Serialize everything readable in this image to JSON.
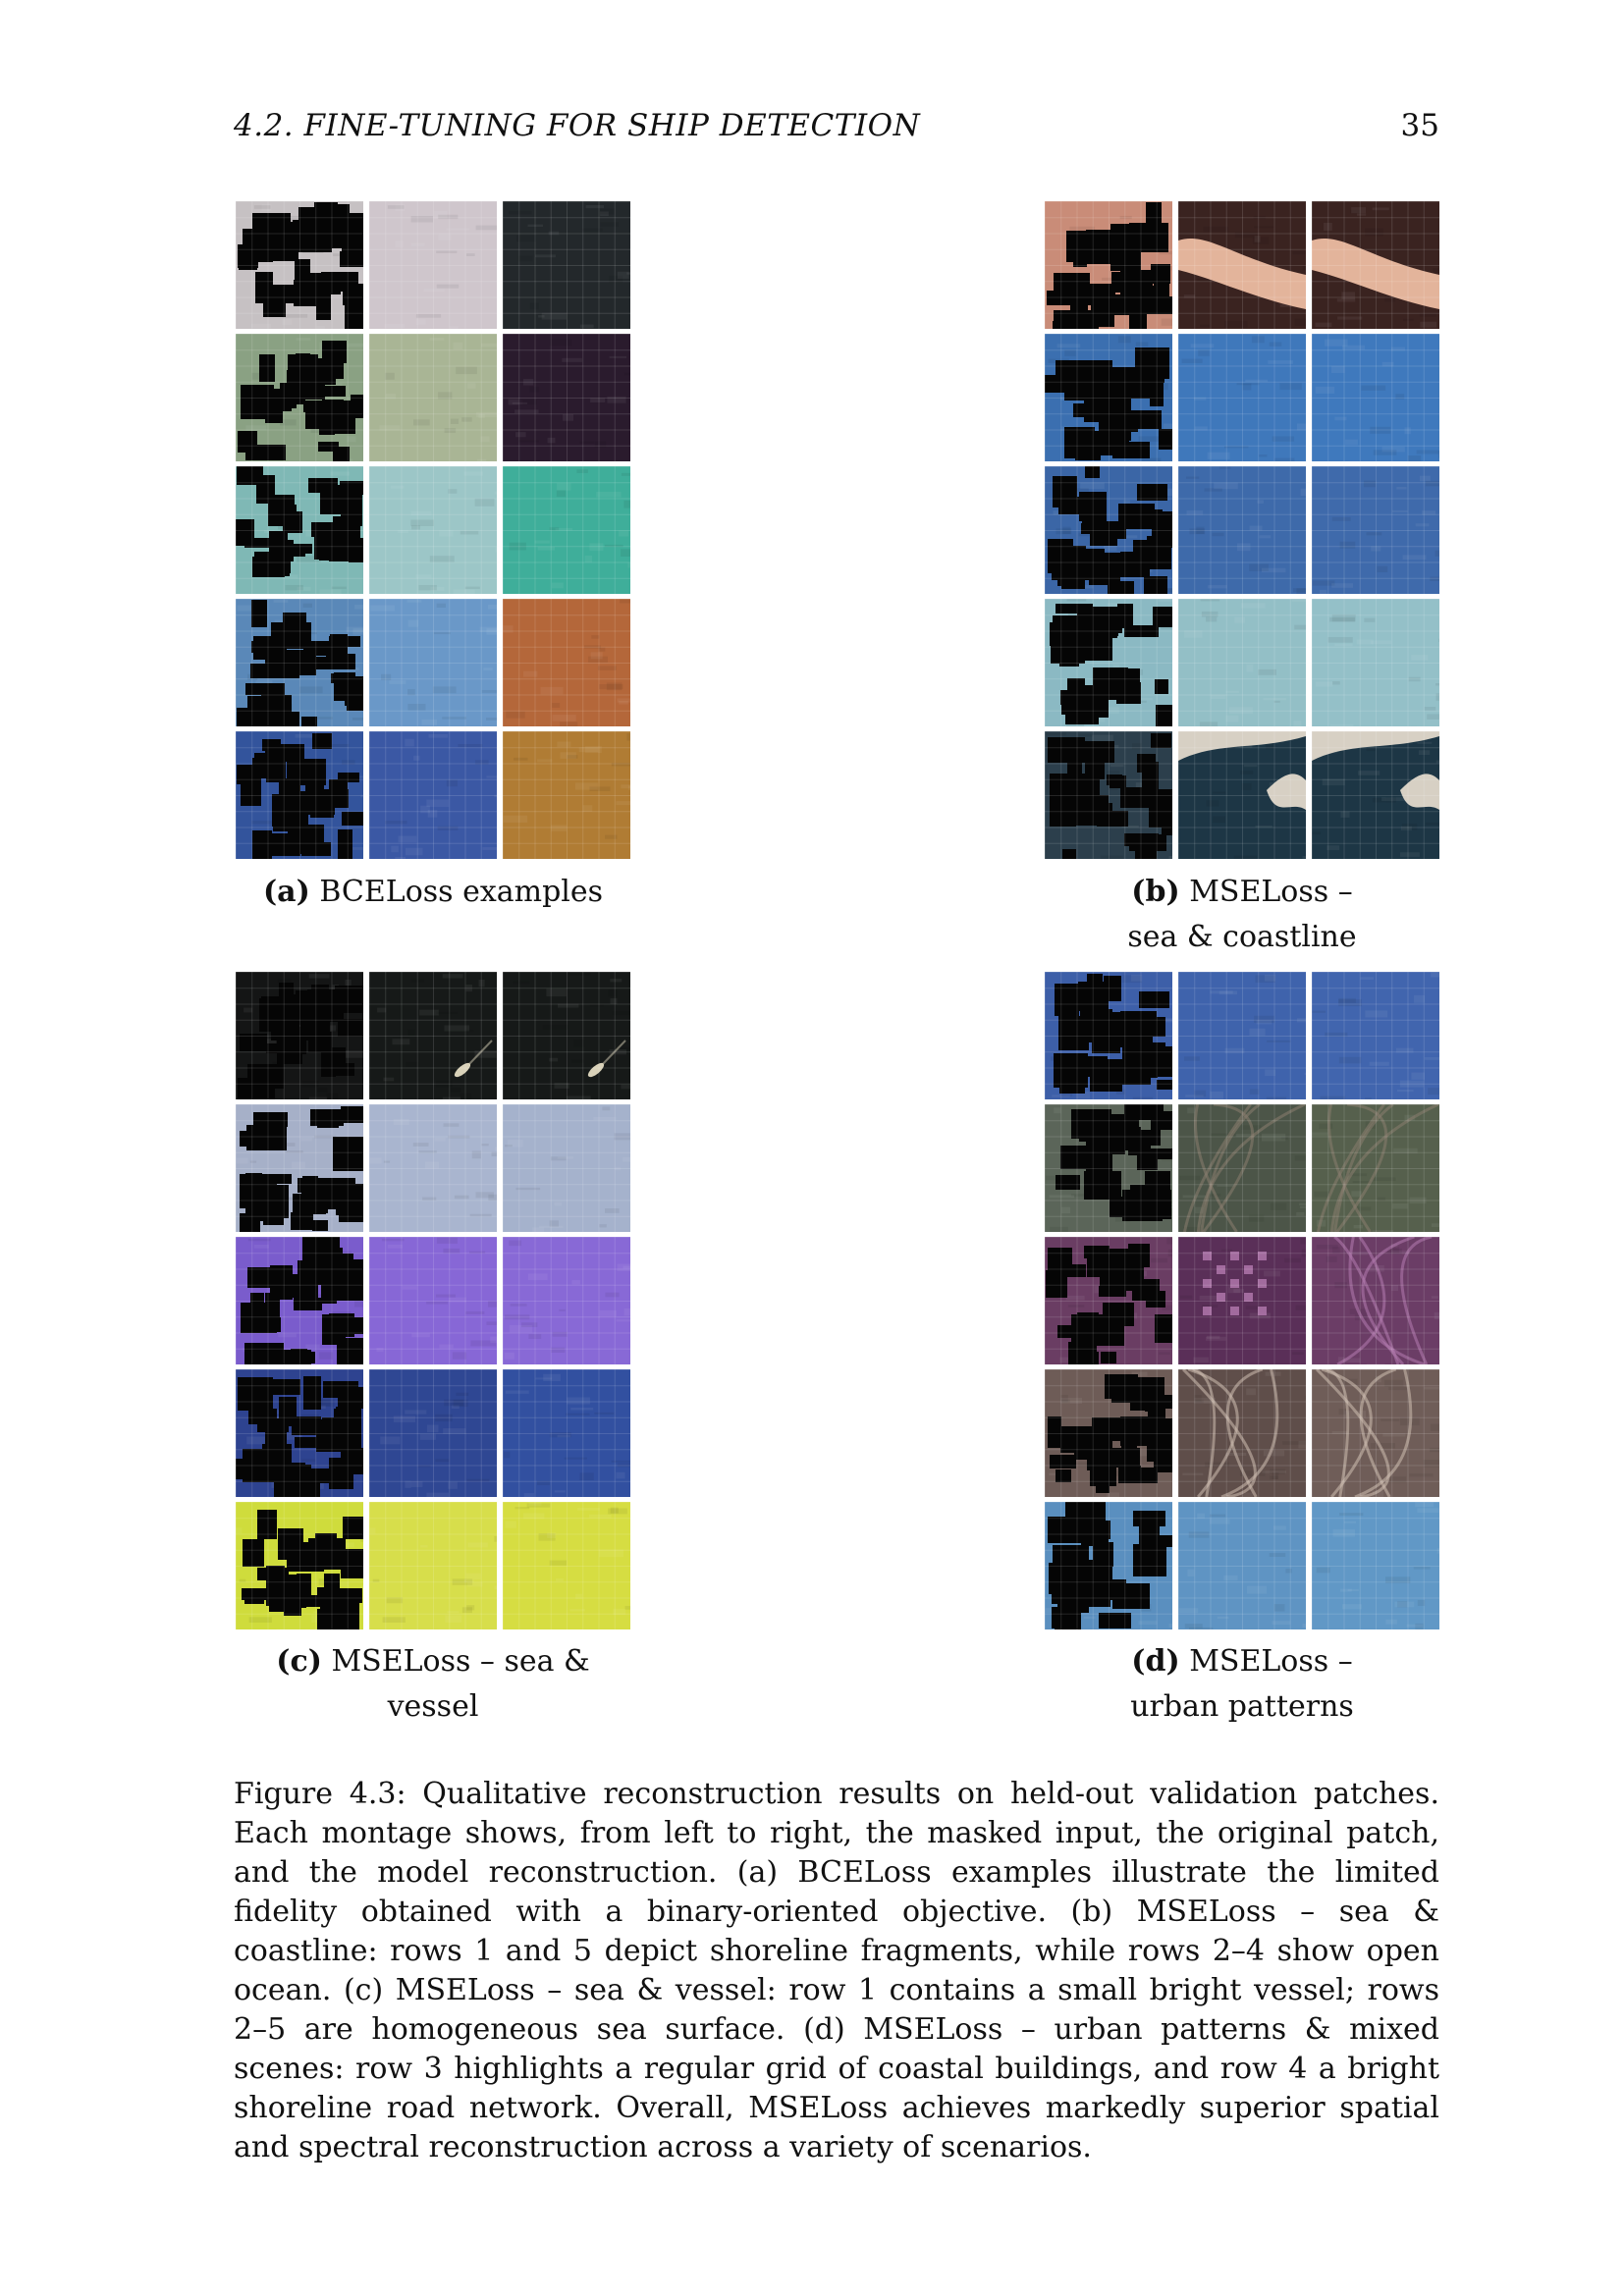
{
  "header": {
    "section": "4.2.   FINE-TUNING FOR SHIP DETECTION",
    "page_number": "35"
  },
  "panels": [
    {
      "label": "(a)",
      "title": "BCELoss examples",
      "rows": [
        {
          "mask": "#c6c1c3",
          "orig": "#cfc6cc",
          "recon": "#23282b"
        },
        {
          "mask": "#8aa183",
          "orig": "#a9b595",
          "recon": "#2a1b2d"
        },
        {
          "mask": "#7fb8b5",
          "orig": "#9cc6c7",
          "recon": "#3fae9a"
        },
        {
          "mask": "#5a88b8",
          "orig": "#6a98c8",
          "recon": "#b4673a"
        },
        {
          "mask": "#33549c",
          "orig": "#3b58a4",
          "recon": "#b07c34"
        }
      ]
    },
    {
      "label": "(b)",
      "title": "MSELoss – sea & coastline",
      "rows": [
        {
          "mask": "#c98c78",
          "orig": "#3a2320",
          "recon": "#3a2320",
          "accent": "#e3b49b"
        },
        {
          "mask": "#3b6fb0",
          "orig": "#3f78bb",
          "recon": "#3f79bd"
        },
        {
          "mask": "#3b66a6",
          "orig": "#3e6aaa",
          "recon": "#3f6aab"
        },
        {
          "mask": "#8bb9c3",
          "orig": "#93bfc6",
          "recon": "#94c0c8"
        },
        {
          "mask": "#2c3f4c",
          "orig": "#1d3645",
          "recon": "#1d3645",
          "accent": "#d7d0c4"
        }
      ]
    },
    {
      "label": "(c)",
      "title": "MSELoss – sea & vessel",
      "rows": [
        {
          "mask": "#141515",
          "orig": "#161918",
          "recon": "#161918",
          "accent": "#d9d2b9"
        },
        {
          "mask": "#a6b0c8",
          "orig": "#a9b5cf",
          "recon": "#a5b2cc"
        },
        {
          "mask": "#7a5ccc",
          "orig": "#8767d6",
          "recon": "#8869d6"
        },
        {
          "mask": "#2e4390",
          "orig": "#2f4793",
          "recon": "#3250a0"
        },
        {
          "mask": "#cfdc3c",
          "orig": "#d7de4b",
          "recon": "#d6dd42"
        }
      ]
    },
    {
      "label": "(d)",
      "title": "MSELoss – urban patterns",
      "rows": [
        {
          "mask": "#3d5fa8",
          "orig": "#3f63ac",
          "recon": "#4165ae"
        },
        {
          "mask": "#5b6559",
          "orig": "#4c5548",
          "recon": "#56604d",
          "accent": "#8b7e70"
        },
        {
          "mask": "#6a3d63",
          "orig": "#5a2f58",
          "recon": "#6b3d66",
          "accent": "#b47bb0"
        },
        {
          "mask": "#6e5c57",
          "orig": "#5f4e4a",
          "recon": "#6f5d58",
          "accent": "#cfc0b2"
        },
        {
          "mask": "#5a8fbf",
          "orig": "#5f94c3",
          "recon": "#6198c6"
        }
      ]
    }
  ],
  "caption": "Figure 4.3: Qualitative reconstruction results on held-out validation patches. Each montage shows, from left to right, the masked input, the original patch, and the model reconstruction. (a) BCELoss examples illustrate the limited fidelity obtained with a binary-oriented objective. (b) MSELoss – sea & coastline: rows 1 and 5 depict shoreline fragments, while rows 2–4 show open ocean. (c) MSELoss – sea & vessel: row 1 contains a small bright vessel; rows 2–5 are homogeneous sea surface. (d) MSELoss – urban patterns & mixed scenes: row 3 highlights a regular grid of coastal buildings, and row 4 a bright shoreline road network. Overall, MSELoss achieves markedly superior spatial and spectral reconstruction across a variety of scenarios."
}
